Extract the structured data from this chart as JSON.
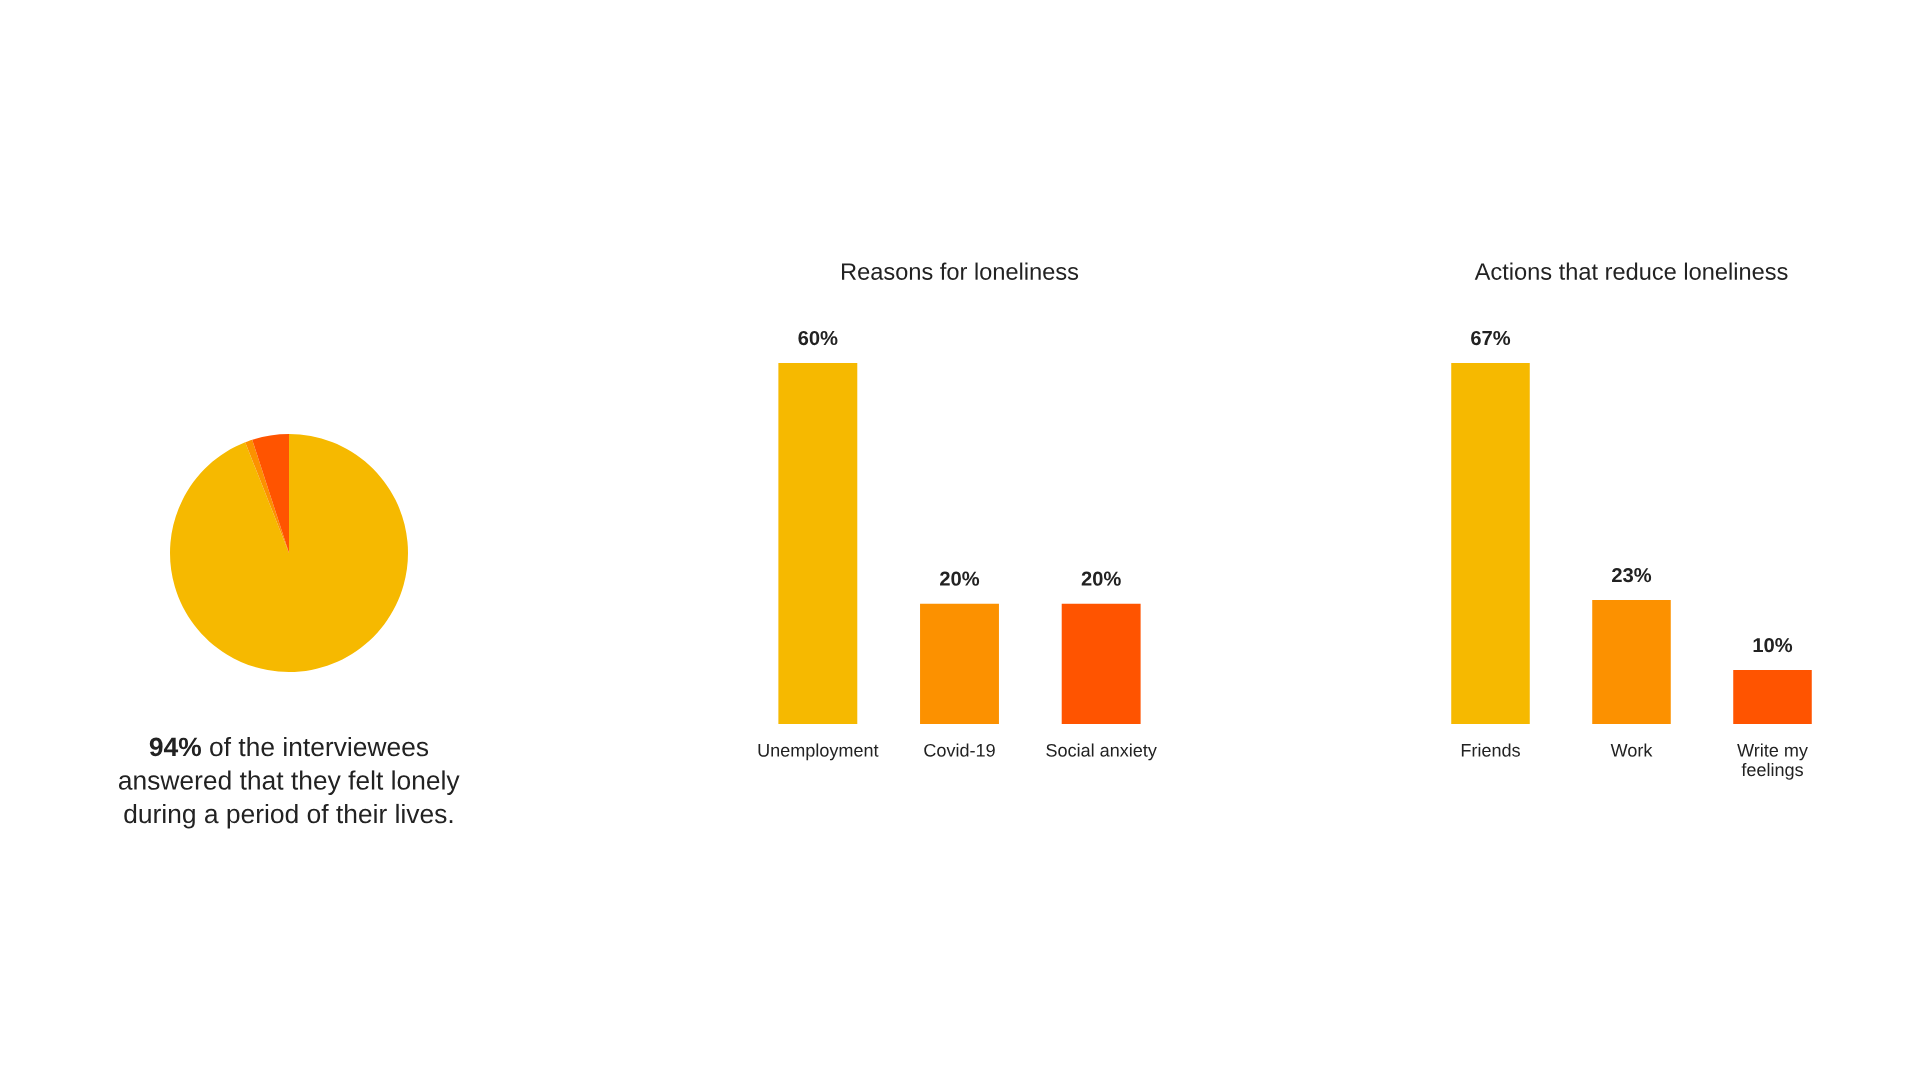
{
  "chart_data": [
    {
      "type": "pie",
      "categories": [
        null,
        null,
        null
      ],
      "values": [
        94,
        1,
        5
      ],
      "colors": [
        "#f6b900",
        "#fc9100",
        "#ff5400"
      ],
      "annotations": [
        "94% of the interviewees answered that they felt lonely during a period of their lives."
      ]
    },
    {
      "type": "bar",
      "title": "Reasons for loneliness",
      "categories": [
        "Unemployment",
        "Covid-19",
        "Social anxiety"
      ],
      "values": [
        60,
        20,
        20
      ],
      "colors": [
        "#f6b900",
        "#fc9100",
        "#ff5400"
      ],
      "value_labels": [
        "60%",
        "20%",
        "20%"
      ],
      "tick_labels": "x"
    },
    {
      "type": "bar",
      "title": "Actions that reduce loneliness",
      "categories": [
        "Friends",
        "Work",
        "Write my feelings"
      ],
      "values": [
        67,
        23,
        10
      ],
      "colors": [
        "#f6b900",
        "#fc9100",
        "#ff5400"
      ],
      "value_labels": [
        "67%",
        "23%",
        "10%"
      ],
      "tick_labels": "x"
    }
  ]
}
